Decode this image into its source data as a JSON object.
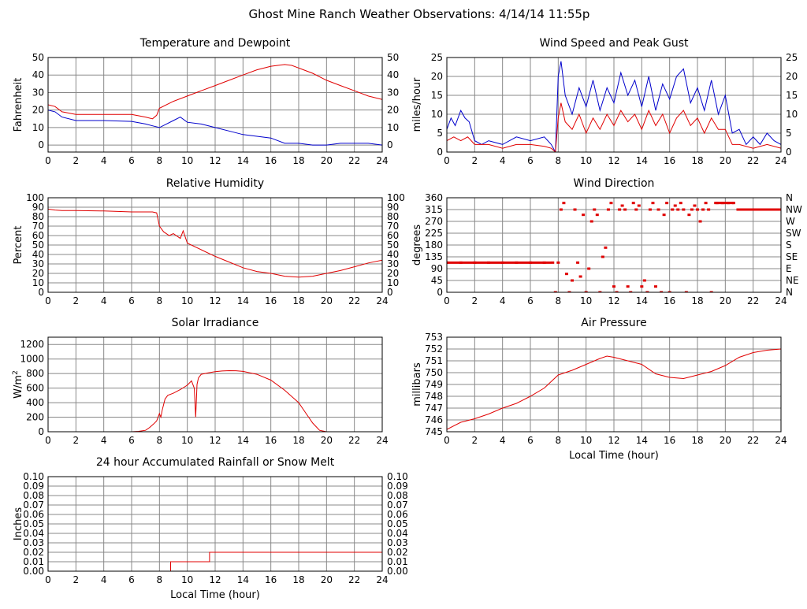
{
  "title": "Ghost Mine Ranch Weather Observations: 4/14/14 11:55p",
  "colors": {
    "red": "#e00000",
    "blue": "#0000cc",
    "grid": "#888888"
  },
  "chart_data": [
    {
      "id": "temperature",
      "type": "line",
      "title": "Temperature and Dewpoint",
      "ylabel": "Fahrenheit",
      "xlim": [
        0,
        24
      ],
      "ylim": [
        -4,
        50
      ],
      "xticks": [
        0,
        2,
        4,
        6,
        8,
        10,
        12,
        14,
        16,
        18,
        20,
        22,
        24
      ],
      "yticks": [
        0,
        10,
        20,
        30,
        40,
        50
      ],
      "right_ticks": [
        "0",
        "10",
        "20",
        "30",
        "40",
        "50"
      ],
      "grid": true,
      "series": [
        {
          "color": "red",
          "x": [
            0,
            0.5,
            1,
            2,
            4,
            6,
            7,
            7.5,
            7.8,
            8,
            9,
            10,
            11,
            12,
            13,
            14,
            15,
            16,
            17,
            17.5,
            18,
            19,
            20,
            21,
            22,
            23,
            24
          ],
          "y": [
            23,
            22,
            19,
            17.5,
            17.5,
            17.5,
            16,
            15,
            17,
            21,
            25,
            28,
            31,
            34,
            37,
            40,
            43,
            45,
            46,
            45.5,
            44,
            41,
            37,
            34,
            31,
            28,
            26
          ]
        },
        {
          "color": "blue",
          "x": [
            0,
            0.5,
            1,
            2,
            4,
            6,
            7,
            7.5,
            8,
            8.5,
            9,
            9.5,
            10,
            11,
            12,
            13,
            14,
            15,
            16,
            17,
            18,
            19,
            20,
            21,
            22,
            23,
            24
          ],
          "y": [
            20,
            19,
            16,
            14,
            14,
            13.5,
            12,
            11,
            10,
            12,
            14,
            16,
            13,
            12,
            10,
            8,
            6,
            5,
            4,
            1,
            1,
            0,
            0,
            1,
            1,
            1,
            0
          ]
        }
      ]
    },
    {
      "id": "wind-speed",
      "type": "line",
      "title": "Wind Speed and Peak Gust",
      "ylabel": "miles/hour",
      "xlim": [
        0,
        24
      ],
      "ylim": [
        0,
        25
      ],
      "xticks": [
        0,
        2,
        4,
        6,
        8,
        10,
        12,
        14,
        16,
        18,
        20,
        22,
        24
      ],
      "yticks": [
        0,
        5,
        10,
        15,
        20,
        25
      ],
      "right_ticks": [
        "0",
        "5",
        "10",
        "15",
        "20",
        "25"
      ],
      "grid": true,
      "series": [
        {
          "color": "blue",
          "x": [
            0,
            0.3,
            0.6,
            1,
            1.3,
            1.6,
            2,
            2.5,
            3,
            4,
            5,
            6,
            7,
            7.5,
            7.8,
            8,
            8.2,
            8.5,
            9,
            9.5,
            10,
            10.5,
            11,
            11.5,
            12,
            12.5,
            13,
            13.5,
            14,
            14.5,
            15,
            15.5,
            16,
            16.5,
            17,
            17.5,
            18,
            18.5,
            19,
            19.5,
            20,
            20.5,
            21,
            21.5,
            22,
            22.5,
            23,
            23.5,
            24
          ],
          "y": [
            6,
            9,
            7,
            11,
            9,
            8,
            3,
            2,
            3,
            2,
            4,
            3,
            4,
            2,
            0,
            20,
            24,
            15,
            10,
            17,
            12,
            19,
            11,
            17,
            13,
            21,
            15,
            19,
            12,
            20,
            11,
            18,
            14,
            20,
            22,
            13,
            17,
            11,
            19,
            10,
            15,
            5,
            6,
            2,
            4,
            2,
            5,
            3,
            2
          ]
        },
        {
          "color": "red",
          "x": [
            0,
            0.5,
            1,
            1.5,
            2,
            3,
            4,
            5,
            6,
            7,
            7.5,
            7.8,
            8,
            8.2,
            8.5,
            9,
            9.5,
            10,
            10.5,
            11,
            11.5,
            12,
            12.5,
            13,
            13.5,
            14,
            14.5,
            15,
            15.5,
            16,
            16.5,
            17,
            17.5,
            18,
            18.5,
            19,
            19.5,
            20,
            20.5,
            21,
            22,
            23,
            24
          ],
          "y": [
            3,
            4,
            3,
            4,
            2,
            2,
            1,
            2,
            2,
            1.5,
            1,
            0,
            9,
            13,
            8,
            6,
            10,
            5,
            9,
            6,
            10,
            7,
            11,
            8,
            10,
            6,
            11,
            7,
            10,
            5,
            9,
            11,
            7,
            9,
            5,
            9,
            6,
            6,
            2,
            2,
            1,
            2,
            1
          ]
        }
      ]
    },
    {
      "id": "humidity",
      "type": "line",
      "title": "Relative Humidity",
      "ylabel": "Percent",
      "xlim": [
        0,
        24
      ],
      "ylim": [
        0,
        100
      ],
      "xticks": [
        0,
        2,
        4,
        6,
        8,
        10,
        12,
        14,
        16,
        18,
        20,
        22,
        24
      ],
      "yticks": [
        0,
        10,
        20,
        30,
        40,
        50,
        60,
        70,
        80,
        90,
        100
      ],
      "right_ticks": [
        "0",
        "10",
        "20",
        "30",
        "40",
        "50",
        "60",
        "70",
        "80",
        "90",
        "100"
      ],
      "grid": true,
      "series": [
        {
          "color": "red",
          "x": [
            0,
            0.5,
            1,
            2,
            4,
            6,
            7,
            7.5,
            7.8,
            8,
            8.3,
            8.7,
            9,
            9.5,
            9.7,
            10,
            11,
            12,
            13,
            14,
            15,
            16,
            17,
            18,
            19,
            20,
            21,
            22,
            23,
            24
          ],
          "y": [
            88,
            87,
            86.5,
            86.5,
            86,
            85,
            85,
            85,
            84,
            70,
            64,
            60,
            62,
            57,
            65,
            52,
            45,
            38,
            32,
            26,
            22,
            20,
            17,
            16,
            17,
            20,
            23,
            27,
            31,
            34
          ]
        }
      ]
    },
    {
      "id": "wind-direction",
      "type": "scatter",
      "title": "Wind Direction",
      "ylabel": "degrees",
      "xlim": [
        0,
        24
      ],
      "ylim": [
        0,
        360
      ],
      "xticks": [
        0,
        2,
        4,
        6,
        8,
        10,
        12,
        14,
        16,
        18,
        20,
        22,
        24
      ],
      "yticks": [
        0,
        45,
        90,
        135,
        180,
        225,
        270,
        315,
        360
      ],
      "right_ticks": [
        "N",
        "NE",
        "E",
        "SE",
        "S",
        "SW",
        "W",
        "NW",
        "N"
      ],
      "grid": true,
      "series": [
        {
          "color": "red",
          "x": [
            0,
            1,
            2,
            3,
            4,
            5,
            6,
            7,
            7.6,
            7.8,
            8,
            8.2,
            8.4,
            8.6,
            8.8,
            9,
            9.2,
            9.4,
            9.6,
            9.8,
            10,
            10.2,
            10.4,
            10.6,
            10.8,
            11,
            11.2,
            11.4,
            11.6,
            11.8,
            12,
            12.2,
            12.4,
            12.6,
            12.8,
            13,
            13.2,
            13.4,
            13.6,
            13.8,
            14,
            14.2,
            14.4,
            14.6,
            14.8,
            15,
            15.2,
            15.4,
            15.6,
            15.8,
            16,
            16.2,
            16.4,
            16.6,
            16.8,
            17,
            17.2,
            17.4,
            17.6,
            17.8,
            18,
            18.2,
            18.4,
            18.6,
            18.8,
            19,
            19.4,
            19.8,
            20.2,
            20.6,
            21,
            21.4,
            21.8,
            22.2,
            22.6,
            23,
            23.5,
            24
          ],
          "y": [
            113,
            113,
            113,
            113,
            113,
            113,
            113,
            113,
            113,
            0,
            113,
            315,
            340,
            70,
            0,
            45,
            315,
            113,
            60,
            295,
            0,
            90,
            270,
            315,
            295,
            0,
            135,
            170,
            315,
            340,
            22,
            0,
            315,
            330,
            315,
            22,
            0,
            340,
            315,
            330,
            22,
            45,
            0,
            315,
            340,
            22,
            315,
            0,
            295,
            340,
            0,
            315,
            330,
            315,
            340,
            315,
            0,
            295,
            315,
            330,
            315,
            270,
            315,
            340,
            315,
            0,
            340,
            340,
            340,
            340,
            315,
            315,
            315,
            315,
            315,
            315,
            315,
            315
          ]
        }
      ]
    },
    {
      "id": "solar",
      "type": "line",
      "title": "Solar Irradiance",
      "ylabel": "W/m",
      "ylabel_sup": "2",
      "xlim": [
        0,
        24
      ],
      "ylim": [
        0,
        1300
      ],
      "xticks": [
        0,
        2,
        4,
        6,
        8,
        10,
        12,
        14,
        16,
        18,
        20,
        22,
        24
      ],
      "yticks": [
        0,
        200,
        400,
        600,
        800,
        1000,
        1200
      ],
      "right_ticks": [],
      "grid": true,
      "series": [
        {
          "color": "red",
          "x": [
            0,
            2,
            4,
            6,
            6.5,
            7,
            7.3,
            7.6,
            7.8,
            8,
            8.1,
            8.2,
            8.4,
            8.6,
            9,
            9.5,
            10,
            10.3,
            10.5,
            10.6,
            10.7,
            10.8,
            11,
            11.5,
            12,
            12.5,
            13,
            13.5,
            14,
            15,
            16,
            17,
            18,
            18.5,
            19,
            19.5,
            20,
            22,
            24
          ],
          "y": [
            0,
            0,
            0,
            0,
            5,
            20,
            60,
            110,
            150,
            250,
            200,
            300,
            450,
            500,
            530,
            580,
            640,
            700,
            600,
            200,
            650,
            740,
            790,
            810,
            825,
            835,
            840,
            838,
            830,
            790,
            710,
            570,
            400,
            260,
            120,
            20,
            0,
            0,
            0
          ]
        }
      ]
    },
    {
      "id": "pressure",
      "type": "line",
      "title": "Air Pressure",
      "ylabel": "millibars",
      "xlabel": "Local Time (hour)",
      "xlim": [
        0,
        24
      ],
      "ylim": [
        745,
        753
      ],
      "xticks": [
        0,
        2,
        4,
        6,
        8,
        10,
        12,
        14,
        16,
        18,
        20,
        22,
        24
      ],
      "yticks": [
        745,
        746,
        747,
        748,
        749,
        750,
        751,
        752,
        753
      ],
      "right_ticks": [],
      "grid": true,
      "series": [
        {
          "color": "red",
          "x": [
            0,
            1,
            2,
            3,
            4,
            5,
            6,
            7,
            8,
            9,
            10,
            11,
            11.5,
            12,
            13,
            14,
            15,
            16,
            17,
            18,
            19,
            20,
            21,
            22,
            23,
            24
          ],
          "y": [
            745.2,
            745.8,
            746.1,
            746.5,
            747,
            747.4,
            748,
            748.7,
            749.8,
            750.2,
            750.7,
            751.2,
            751.4,
            751.3,
            751,
            750.7,
            749.9,
            749.6,
            749.5,
            749.8,
            750.1,
            750.6,
            751.3,
            751.7,
            751.9,
            752
          ]
        }
      ]
    },
    {
      "id": "rainfall",
      "type": "line",
      "title": "24 hour Accumulated Rainfall or Snow Melt",
      "ylabel": "Inches",
      "xlabel": "Local Time (hour)",
      "xlim": [
        0,
        24
      ],
      "ylim": [
        0,
        0.1
      ],
      "xticks": [
        0,
        2,
        4,
        6,
        8,
        10,
        12,
        14,
        16,
        18,
        20,
        22,
        24
      ],
      "yticks": [
        0,
        0.01,
        0.02,
        0.03,
        0.04,
        0.05,
        0.06,
        0.07,
        0.08,
        0.09,
        0.1
      ],
      "ytick_labels": [
        "0.00",
        "0.01",
        "0.02",
        "0.03",
        "0.04",
        "0.05",
        "0.06",
        "0.07",
        "0.08",
        "0.09",
        "0.10"
      ],
      "right_ticks": [
        "0.00",
        "0.01",
        "0.02",
        "0.03",
        "0.04",
        "0.05",
        "0.06",
        "0.07",
        "0.08",
        "0.09",
        "0.10"
      ],
      "grid": true,
      "series": [
        {
          "color": "red",
          "x": [
            0,
            8.8,
            8.8,
            11.6,
            11.6,
            24
          ],
          "y": [
            0,
            0,
            0.01,
            0.01,
            0.02,
            0.02
          ]
        }
      ]
    }
  ]
}
